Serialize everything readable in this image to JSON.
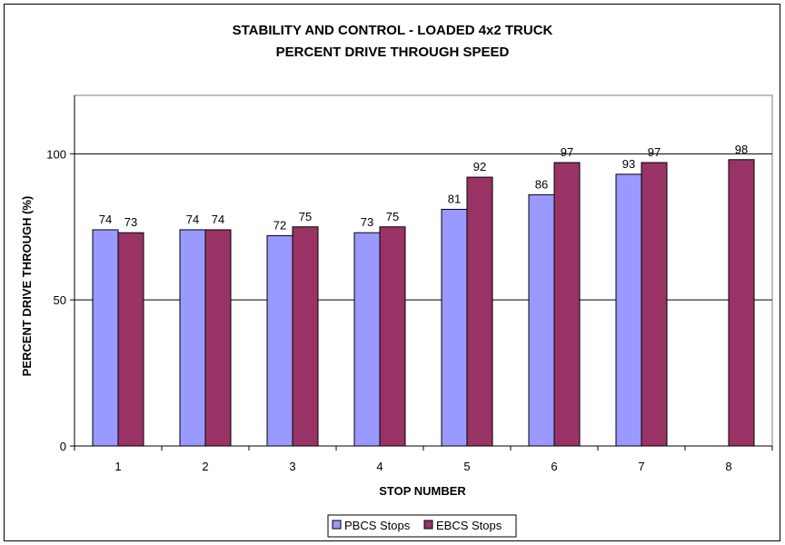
{
  "chart_data": {
    "type": "bar",
    "title": "STABILITY AND CONTROL - LOADED 4x2 TRUCK",
    "subtitle": "PERCENT DRIVE THROUGH SPEED",
    "xlabel": "STOP NUMBER",
    "ylabel": "PERCENT DRIVE THROUGH (%)",
    "categories": [
      "1",
      "2",
      "3",
      "4",
      "5",
      "6",
      "7",
      "8"
    ],
    "ylim": [
      0,
      120
    ],
    "yticks": [
      0,
      50,
      100
    ],
    "grid": true,
    "legend_position": "bottom",
    "series": [
      {
        "name": "PBCS Stops",
        "color": "#9999ff",
        "values": [
          74,
          74,
          72,
          73,
          81,
          86,
          93,
          null
        ]
      },
      {
        "name": "EBCS Stops",
        "color": "#993366",
        "values": [
          73,
          74,
          75,
          75,
          92,
          97,
          97,
          98
        ]
      }
    ]
  }
}
